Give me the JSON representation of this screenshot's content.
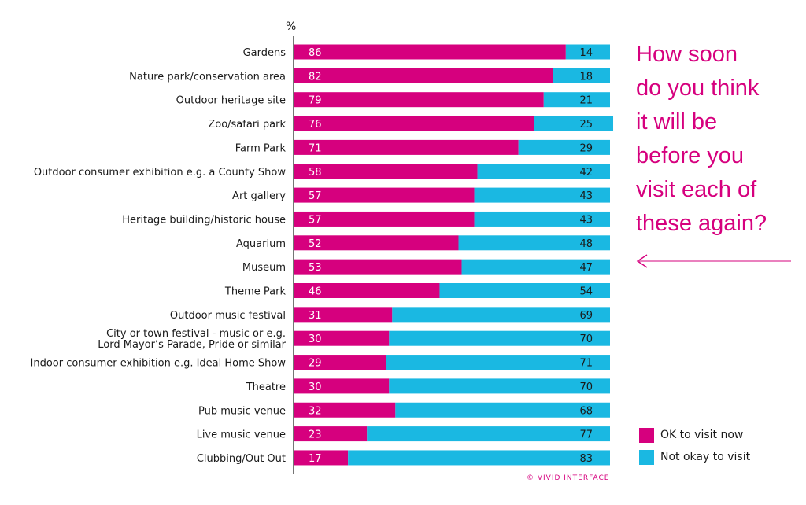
{
  "chart_data": {
    "type": "bar",
    "orientation": "horizontal",
    "stacked": true,
    "unit_label": "%",
    "categories": [
      "Gardens",
      "Nature park/conservation area",
      "Outdoor heritage site",
      "Zoo/safari park",
      "Farm Park",
      "Outdoor consumer exhibition e.g. a County Show",
      "Art gallery",
      "Heritage building/historic house",
      "Aquarium",
      "Museum",
      "Theme Park",
      "Outdoor music festival",
      "City or town festival - music or e.g.\nLord Mayor’s Parade, Pride or similar",
      "Indoor consumer exhibition e.g. Ideal Home Show",
      "Theatre",
      "Pub music venue",
      "Live music venue",
      "Clubbing/Out Out"
    ],
    "series": [
      {
        "name": "OK to visit now",
        "color": "#d6007e",
        "values": [
          86,
          82,
          79,
          76,
          71,
          58,
          57,
          57,
          52,
          53,
          46,
          31,
          30,
          29,
          30,
          32,
          23,
          17
        ]
      },
      {
        "name": "Not okay to visit",
        "color": "#1ab8e2",
        "values": [
          14,
          18,
          21,
          25,
          29,
          42,
          43,
          43,
          48,
          47,
          54,
          69,
          70,
          71,
          70,
          68,
          77,
          83
        ]
      }
    ],
    "xlim": [
      0,
      100
    ],
    "grid": false,
    "legend_position": "bottom-right"
  },
  "annotation": {
    "question": "How soon\ndo you think\nit will be\nbefore you\nvisit each of\nthese again?",
    "color": "#d6007e"
  },
  "copyright": "© VIVID INTERFACE"
}
